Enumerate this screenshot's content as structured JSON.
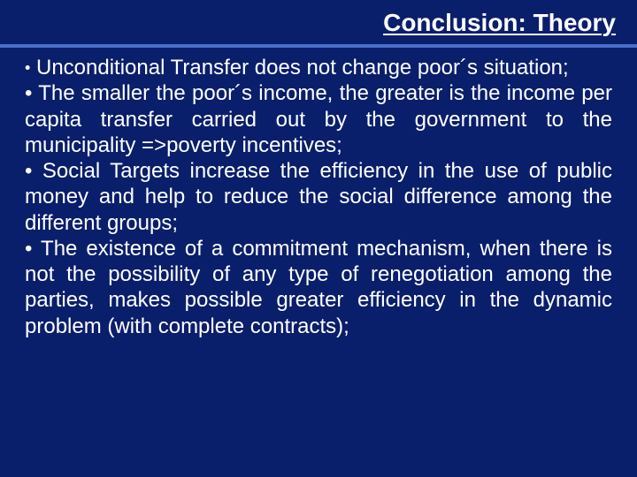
{
  "slide": {
    "title": "Conclusion: Theory",
    "background_color": "#0a1f6b",
    "accent_color": "#4a6fc9",
    "text_color": "#ffffff",
    "title_fontsize": 28,
    "body_fontsize": 24,
    "bullets": [
      "Unconditional Transfer does not change poor´s situation;",
      "The smaller the poor´s income, the greater is the income per capita transfer carried out by the government to the municipality =>poverty incentives;",
      "Social Targets increase the efficiency in the use of public money and help to reduce the social difference among the different groups;",
      "The existence of a commitment mechanism, when there is not the possibility of any type of renegotiation among the parties, makes possible greater efficiency in the dynamic problem (with complete contracts);"
    ],
    "bullet_glyphs": [
      "•",
      "• ",
      "• ",
      "• "
    ]
  }
}
